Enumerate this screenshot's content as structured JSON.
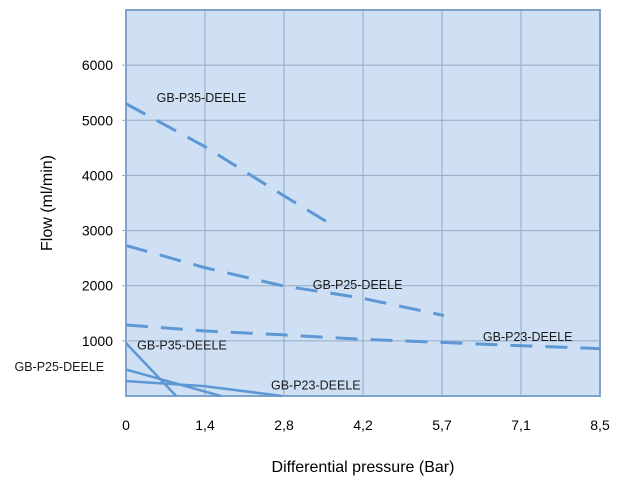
{
  "chart_data": {
    "type": "line",
    "title": "",
    "xlabel": "Differential pressure (Bar)",
    "ylabel": "Flow (ml/min)",
    "xlim": [
      0,
      8.5
    ],
    "ylim": [
      0,
      7000
    ],
    "x_ticks": [
      "0",
      "1,4",
      "2,8",
      "4,2",
      "5,7",
      "7,1",
      "8,5"
    ],
    "y_ticks": [
      "1000",
      "2000",
      "3000",
      "4000",
      "5000",
      "6000"
    ],
    "grid": true,
    "colors": {
      "plot_background": "#cfe0f5",
      "grid": "#93a9c3",
      "series": "#5e98d4"
    },
    "series": [
      {
        "name": "GB-P35-DEELE",
        "style": "dashed",
        "x": [
          0,
          1.4,
          2.8,
          3.7
        ],
        "y": [
          5300,
          4530,
          3650,
          3100
        ]
      },
      {
        "name": "GB-P25-DEELE",
        "style": "dashed",
        "x": [
          0,
          1.4,
          2.8,
          4.2,
          5.7
        ],
        "y": [
          2730,
          2330,
          2000,
          1780,
          1460
        ]
      },
      {
        "name": "GB-P23-DEELE",
        "style": "dashed",
        "x": [
          0,
          1.4,
          2.8,
          4.2,
          5.7,
          7.1,
          8.5
        ],
        "y": [
          1290,
          1180,
          1110,
          1030,
          970,
          910,
          860
        ]
      },
      {
        "name": "GB-P35-DEELE",
        "style": "solid",
        "x": [
          0,
          0.9
        ],
        "y": [
          960,
          0
        ]
      },
      {
        "name": "GB-P25-DEELE",
        "style": "solid",
        "x": [
          0,
          1.7
        ],
        "y": [
          480,
          0
        ]
      },
      {
        "name": "GB-P23-DEELE",
        "style": "solid",
        "x": [
          0,
          1.4,
          2.8
        ],
        "y": [
          270,
          180,
          0
        ]
      }
    ],
    "annotations": [
      {
        "text": "GB-P35-DEELE",
        "x": 0.55,
        "y": 5330
      },
      {
        "text": "GB-P25-DEELE",
        "x": 3.35,
        "y": 1940
      },
      {
        "text": "GB-P23-DEELE",
        "x": 6.4,
        "y": 1000
      },
      {
        "text": "GB-P35-DEELE",
        "x": 0.2,
        "y": 840
      },
      {
        "text": "GB-P25-DEELE",
        "x": -2.0,
        "y": 450
      },
      {
        "text": "GB-P23-DEELE",
        "x": 2.6,
        "y": 120
      }
    ]
  }
}
